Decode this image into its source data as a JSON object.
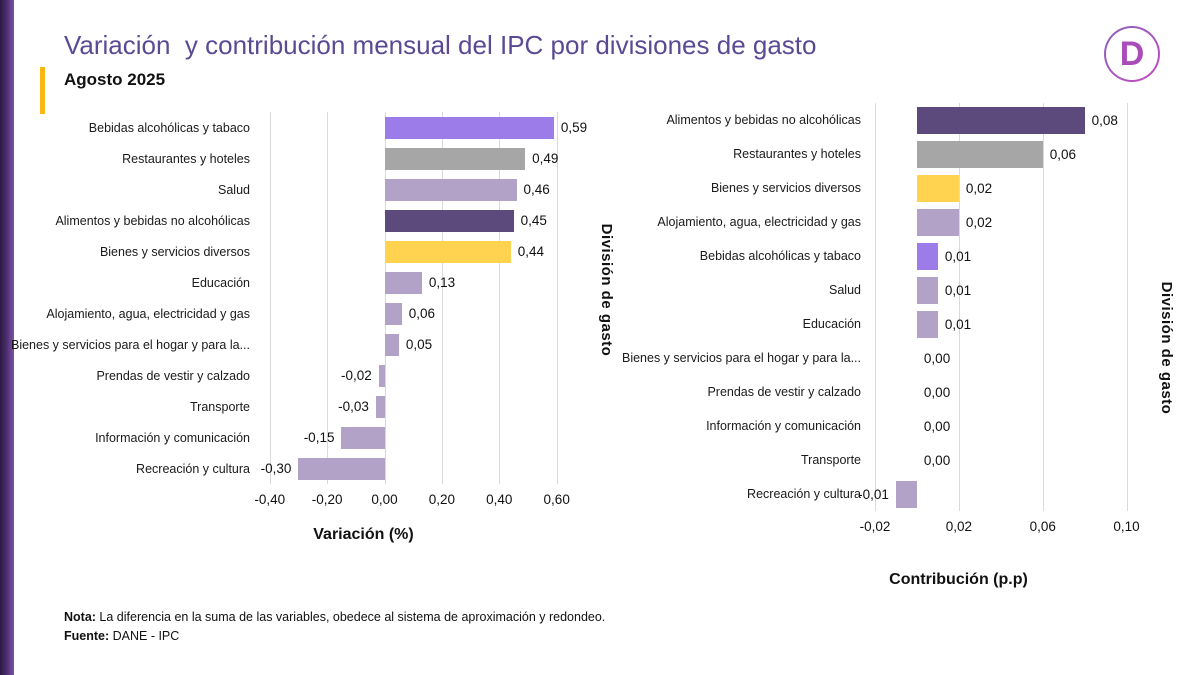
{
  "page": {
    "title": "Variación  y contribución mensual del IPC por divisiones de gasto",
    "subtitle": "Agosto 2025",
    "logo_letter": "D"
  },
  "footer": {
    "note_label": "Nota:",
    "note_text": " La diferencia en la suma de las variables, obedece al sistema de aproximación y redondeo.",
    "source_label": "Fuente:",
    "source_text": " DANE - IPC"
  },
  "colors": {
    "title_purple": "#5B4A93",
    "stripe_dark_purple": "#2E1A42",
    "stripe_light_purple": "#7E52A8",
    "subtitle_accent_yellow": "#FDB714",
    "bar_bright_purple": "#9C7CE8",
    "bar_dark_purple": "#5D4A7D",
    "bar_lavender": "#B3A2C8",
    "bar_yellow": "#FFD24F",
    "bar_gray": "#A6A6A6",
    "gridline_gray": "#D9D9D9",
    "logo_purple": "#A94BB8"
  },
  "chart_data": [
    {
      "type": "bar",
      "orientation": "horizontal",
      "title": "",
      "xlabel": "Variación (%)",
      "ylabel": "División de gasto",
      "xlim": [
        -0.42,
        0.73
      ],
      "grid": true,
      "legend": false,
      "categories": [
        "Bebidas alcohólicas y tabaco",
        "Restaurantes y hoteles",
        "Salud",
        "Alimentos y bebidas no alcohólicas",
        "Bienes y servicios diversos",
        "Educación",
        "Alojamiento, agua, electricidad y gas",
        "Bienes y servicios para el hogar y para la...",
        "Prendas de vestir y calzado",
        "Transporte",
        "Información y comunicación",
        "Recreación y cultura"
      ],
      "values": [
        0.59,
        0.49,
        0.46,
        0.45,
        0.44,
        0.13,
        0.06,
        0.05,
        -0.02,
        -0.03,
        -0.15,
        -0.3
      ],
      "value_labels": [
        "0,59",
        "0,49",
        "0,46",
        "0,45",
        "0,44",
        "0,13",
        "0,06",
        "0,05",
        "-0,02",
        "-0,03",
        "-0,15",
        "-0,30"
      ],
      "bar_colors": [
        "#9C7CE8",
        "#A6A6A6",
        "#B3A2C8",
        "#5D4A7D",
        "#FFD24F",
        "#B3A2C8",
        "#B3A2C8",
        "#B3A2C8",
        "#B3A2C8",
        "#B3A2C8",
        "#B3A2C8",
        "#B3A2C8"
      ],
      "ticks": [
        {
          "value": -0.4,
          "label": "-0,40"
        },
        {
          "value": -0.2,
          "label": "-0,20"
        },
        {
          "value": 0,
          "label": "0,00"
        },
        {
          "value": 0.2,
          "label": "0,20"
        },
        {
          "value": 0.4,
          "label": "0,40"
        },
        {
          "value": 0.6,
          "label": "0,60"
        }
      ]
    },
    {
      "type": "bar",
      "orientation": "horizontal",
      "title": "",
      "xlabel": "Contribución (p.p)",
      "ylabel": "División de gasto",
      "xlim": [
        -0.02,
        0.115
      ],
      "grid": true,
      "legend": false,
      "categories": [
        "Alimentos y bebidas no alcohólicas",
        "Restaurantes y hoteles",
        "Bienes y servicios diversos",
        "Alojamiento, agua, electricidad y gas",
        "Bebidas alcohólicas y tabaco",
        "Salud",
        "Educación",
        "Bienes y servicios para el hogar y para la...",
        "Prendas de vestir y calzado",
        "Información y comunicación",
        "Transporte",
        "Recreación y cultura"
      ],
      "values": [
        0.08,
        0.06,
        0.02,
        0.02,
        0.01,
        0.01,
        0.01,
        0,
        0,
        0,
        0,
        -0.01
      ],
      "value_labels": [
        "0,08",
        "0,06",
        "0,02",
        "0,02",
        "0,01",
        "0,01",
        "0,01",
        "0,00",
        "0,00",
        "0,00",
        "0,00",
        "-0,01"
      ],
      "bar_colors": [
        "#5D4A7D",
        "#A6A6A6",
        "#FFD24F",
        "#B3A2C8",
        "#9C7CE8",
        "#B3A2C8",
        "#B3A2C8",
        "#B3A2C8",
        "#B3A2C8",
        "#B3A2C8",
        "#B3A2C8",
        "#B3A2C8"
      ],
      "ticks": [
        {
          "value": -0.02,
          "label": "-0,02"
        },
        {
          "value": 0.02,
          "label": "0,02"
        },
        {
          "value": 0.06,
          "label": "0,06"
        },
        {
          "value": 0.1,
          "label": "0,10"
        }
      ]
    }
  ]
}
